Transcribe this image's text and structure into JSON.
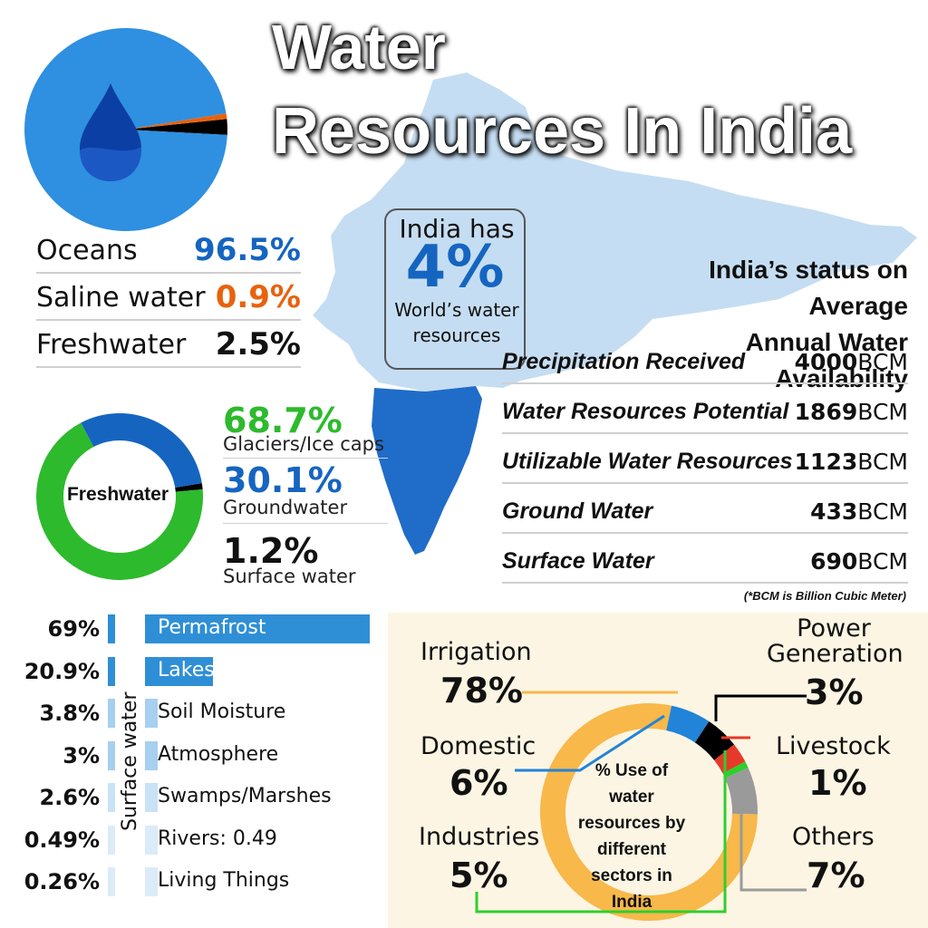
{
  "title": {
    "line1": "Water",
    "line2": "Resources In India"
  },
  "colors": {
    "blue": "#1565c0",
    "light_blue": "#2f8fe0",
    "orange": "#e8620e",
    "green": "#2dba2d",
    "black": "#000000",
    "map_light": "#c5ddf2",
    "map_dark": "#1f6cc9",
    "sector_panel_bg": "#fdf5e3",
    "sector_irrigation": "#f8b84a",
    "sector_others": "#9a9a9a",
    "sector_livestock": "#e53a2a"
  },
  "icons": {
    "water_drop": "water-drop-icon"
  },
  "callout": {
    "line1": "India has",
    "big": "4%",
    "line2": "World’s water",
    "line3": "resources"
  },
  "status": {
    "title_line1": "India’s status on Average",
    "title_line2": "Annual Water Availability",
    "rows": [
      {
        "label": "Precipitation Received",
        "value": "4000",
        "unit": "BCM"
      },
      {
        "label": "Water Resources Potential",
        "value": "1869",
        "unit": "BCM"
      },
      {
        "label": "Utilizable Water Resources",
        "value": "1123",
        "unit": "BCM"
      },
      {
        "label": "Ground Water",
        "value": "433",
        "unit": "BCM"
      },
      {
        "label": "Surface Water",
        "value": "690",
        "unit": "BCM"
      }
    ],
    "footnote": "(*BCM is Billion Cubic Meter)"
  },
  "freshwater_center": "Freshwater",
  "surface_axis_label": "Surface water",
  "chart_data": [
    {
      "type": "pie",
      "labels": [
        "Oceans",
        "Saline water",
        "Freshwater"
      ],
      "display": [
        "96.5%",
        "0.9%",
        "2.5%"
      ],
      "values": [
        96.5,
        0.9,
        2.5
      ],
      "colors": [
        "#2f8fe0",
        "#e8620e",
        "#000000"
      ],
      "value_colors": [
        "#1565c0",
        "#e8620e",
        "#111111"
      ]
    },
    {
      "type": "pie",
      "center_label": "Freshwater",
      "labels": [
        "Glaciers/Ice caps",
        "Groundwater",
        "Surface water"
      ],
      "display": [
        "68.7%",
        "30.1%",
        "1.2%"
      ],
      "values": [
        68.7,
        30.1,
        1.2
      ],
      "colors": [
        "#2dba2d",
        "#1565c0",
        "#000000"
      ]
    },
    {
      "type": "bar",
      "orientation": "horizontal",
      "axis_label": "Surface water",
      "categories": [
        "Permafrost",
        "Lakes",
        "Soil Moisture",
        "Atmosphere",
        "Swamps/Marshes",
        "Rivers: 0.49",
        "Living Things"
      ],
      "display": [
        "69%",
        "20.9%",
        "3.8%",
        "3%",
        "2.6%",
        "0.49%",
        "0.26%"
      ],
      "values": [
        69,
        20.9,
        3.8,
        3,
        2.6,
        0.49,
        0.26
      ],
      "bar_colors": [
        "#2e8fd6",
        "#2e8fd6",
        "#a7cff0",
        "#a7cff0",
        "#c8e2f6",
        "#dcebf8",
        "#dcebf8"
      ]
    },
    {
      "type": "pie",
      "center_label": "% Use of water resources by different sectors in India",
      "labels": [
        "Irrigation",
        "Domestic",
        "Industries",
        "Power Generation",
        "Livestock",
        "Others"
      ],
      "display": [
        "78%",
        "6%",
        "5%",
        "3%",
        "1%",
        "7%"
      ],
      "values": [
        78,
        6,
        5,
        3,
        1,
        7
      ],
      "colors": [
        "#f8b84a",
        "#2184d8",
        "#000000",
        "#e53a2a",
        "#2dcf2d",
        "#9a9a9a"
      ]
    }
  ]
}
